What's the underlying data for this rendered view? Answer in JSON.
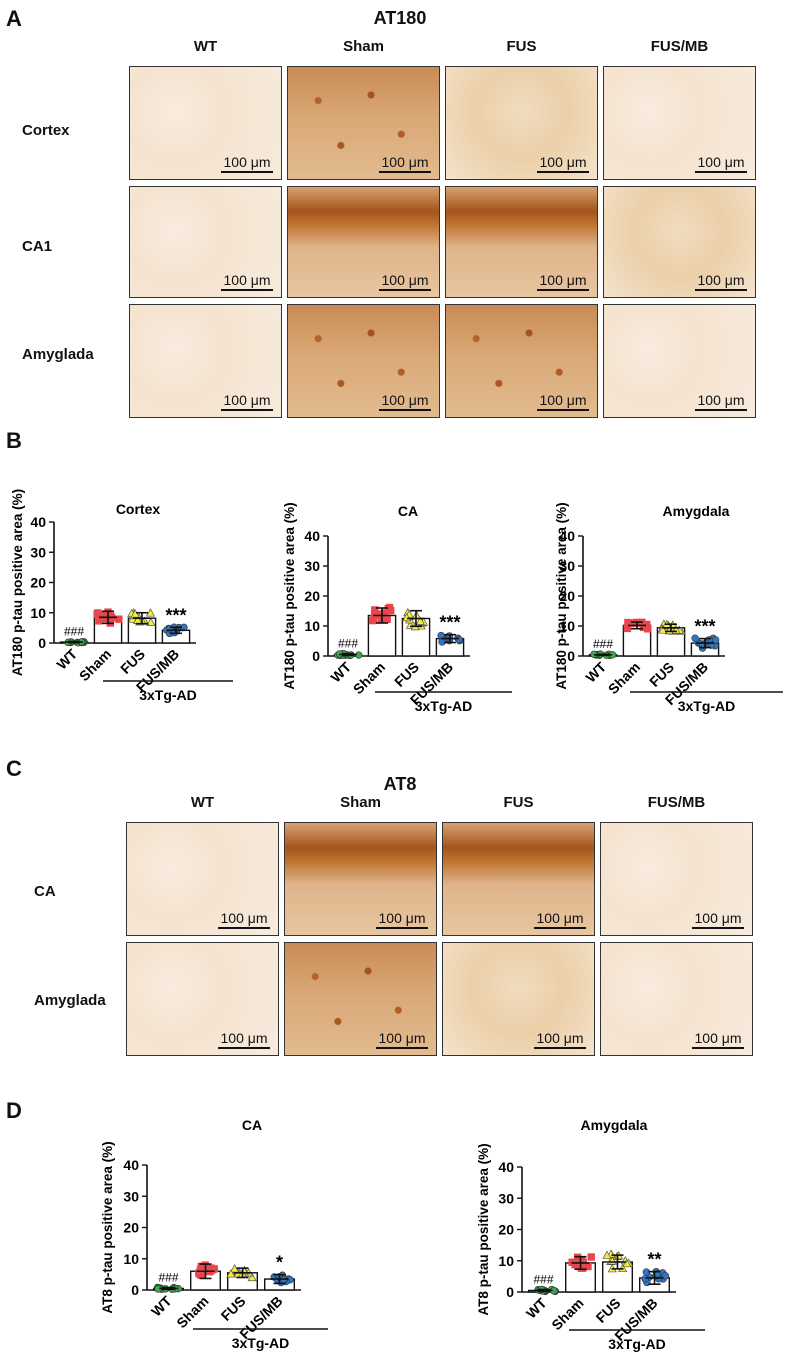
{
  "panels": {
    "A": "A",
    "B": "B",
    "C": "C",
    "D": "D"
  },
  "at180_section": {
    "title": "AT180",
    "columns": [
      "WT",
      "Sham",
      "FUS",
      "FUS/MB"
    ],
    "rows": [
      "Cortex",
      "CA1",
      "Amyglada"
    ],
    "scale_label": "100 μm"
  },
  "at8_section": {
    "title": "AT8",
    "columns": [
      "WT",
      "Sham",
      "FUS",
      "FUS/MB"
    ],
    "rows": [
      "CA",
      "Amyglada"
    ],
    "scale_label": "100 μm"
  },
  "colors": {
    "WT": "#3aa84a",
    "Sham": "#e8464c",
    "FUS": "#f2ee3a",
    "FUS/MB": "#2e75c6"
  },
  "chart_data": [
    {
      "type": "bar",
      "title": "Cortex",
      "ylabel": "AT180 p-tau positive area (%)",
      "categories": [
        "WT",
        "Sham",
        "FUS",
        "FUS/MB"
      ],
      "values": [
        0.3,
        8.5,
        8.2,
        4.2
      ],
      "errors": [
        0.2,
        2.0,
        1.8,
        1.0
      ],
      "ylim": [
        0,
        40
      ],
      "yticks": [
        0,
        10,
        20,
        30,
        40
      ],
      "annotations": [
        {
          "category": "WT",
          "text": "###"
        },
        {
          "category": "FUS/MB",
          "text": "***"
        }
      ],
      "group_label": "3xTg-AD"
    },
    {
      "type": "bar",
      "title": "CA",
      "ylabel": "AT180 p-tau positive area (%)",
      "categories": [
        "WT",
        "Sham",
        "FUS",
        "FUS/MB"
      ],
      "values": [
        0.5,
        13.5,
        12.5,
        5.8
      ],
      "errors": [
        0.3,
        2.5,
        2.6,
        1.3
      ],
      "ylim": [
        0,
        40
      ],
      "yticks": [
        0,
        10,
        20,
        30,
        40
      ],
      "annotations": [
        {
          "category": "WT",
          "text": "###"
        },
        {
          "category": "FUS/MB",
          "text": "***"
        }
      ],
      "group_label": "3xTg-AD"
    },
    {
      "type": "bar",
      "title": "Amygdala",
      "ylabel": "AT180 p-tau positive area (%)",
      "categories": [
        "WT",
        "Sham",
        "FUS",
        "FUS/MB"
      ],
      "values": [
        0.4,
        10.2,
        9.4,
        4.3
      ],
      "errors": [
        0.2,
        1.1,
        1.2,
        1.5
      ],
      "ylim": [
        0,
        40
      ],
      "yticks": [
        0,
        10,
        20,
        30,
        40
      ],
      "annotations": [
        {
          "category": "WT",
          "text": "###"
        },
        {
          "category": "FUS/MB",
          "text": "***"
        }
      ],
      "group_label": "3xTg-AD"
    },
    {
      "type": "bar",
      "title": "CA",
      "ylabel": "AT8 p-tau positive area (%)",
      "categories": [
        "WT",
        "Sham",
        "FUS",
        "FUS/MB"
      ],
      "values": [
        0.5,
        6.0,
        5.5,
        3.5
      ],
      "errors": [
        0.3,
        2.3,
        1.5,
        1.4
      ],
      "ylim": [
        0,
        40
      ],
      "yticks": [
        0,
        10,
        20,
        30,
        40
      ],
      "annotations": [
        {
          "category": "WT",
          "text": "###"
        },
        {
          "category": "FUS/MB",
          "text": "*"
        }
      ],
      "group_label": "3xTg-AD"
    },
    {
      "type": "bar",
      "title": "Amygdala",
      "ylabel": "AT8 p-tau positive area (%)",
      "categories": [
        "WT",
        "Sham",
        "FUS",
        "FUS/MB"
      ],
      "values": [
        0.5,
        9.3,
        9.6,
        4.5
      ],
      "errors": [
        0.3,
        2.0,
        2.2,
        2.0
      ],
      "ylim": [
        0,
        40
      ],
      "yticks": [
        0,
        10,
        20,
        30,
        40
      ],
      "annotations": [
        {
          "category": "WT",
          "text": "###"
        },
        {
          "category": "FUS/MB",
          "text": "**"
        }
      ],
      "group_label": "3xTg-AD"
    }
  ]
}
